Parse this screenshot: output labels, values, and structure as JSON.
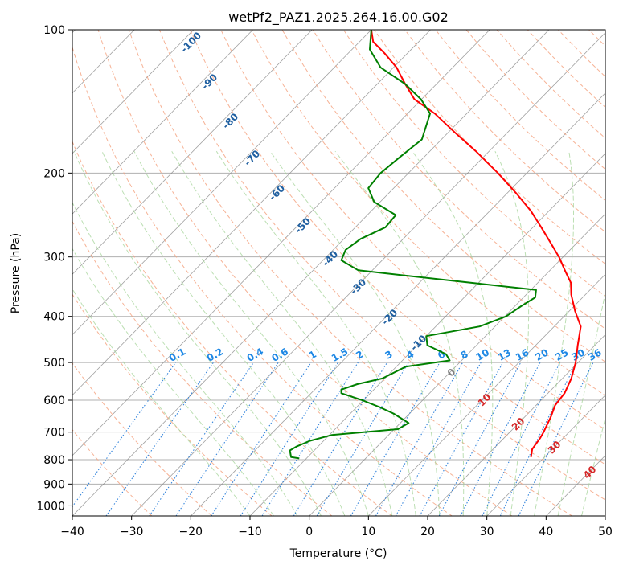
{
  "chart_data": {
    "type": "line",
    "title": "wetPf2_PAZ1.2025.264.16.00.G02",
    "xlabel": "Temperature (°C)",
    "ylabel": "Pressure (hPa)",
    "xlim": [
      -40,
      50
    ],
    "ylim": [
      1050,
      100
    ],
    "y_scale": "log",
    "x_ticks": [
      -40,
      -30,
      -20,
      -10,
      0,
      10,
      20,
      30,
      40,
      50
    ],
    "x_tick_labels": [
      "−40",
      "−30",
      "−20",
      "−10",
      "0",
      "10",
      "20",
      "30",
      "40",
      "50"
    ],
    "y_ticks": [
      1000,
      900,
      800,
      700,
      600,
      500,
      400,
      300,
      200,
      100
    ],
    "y_tick_labels": [
      "1000",
      "900",
      "800",
      "700",
      "600",
      "500",
      "400",
      "300",
      "200",
      "100"
    ],
    "grid": true,
    "series": [
      {
        "color": "#ff0000",
        "values": [
          [
            790,
            27.7
          ],
          [
            760,
            26.6
          ],
          [
            720,
            26.1
          ],
          [
            700,
            25.7
          ],
          [
            650,
            24.4
          ],
          [
            615,
            23.2
          ],
          [
            580,
            22.8
          ],
          [
            540,
            21.5
          ],
          [
            500,
            19.6
          ],
          [
            460,
            17.1
          ],
          [
            420,
            14.5
          ],
          [
            390,
            11.0
          ],
          [
            360,
            7.6
          ],
          [
            340,
            5.6
          ],
          [
            320,
            2.5
          ],
          [
            300,
            -0.7
          ],
          [
            280,
            -4.5
          ],
          [
            260,
            -8.6
          ],
          [
            240,
            -13.1
          ],
          [
            220,
            -18.6
          ],
          [
            200,
            -24.9
          ],
          [
            180,
            -32.2
          ],
          [
            165,
            -38.6
          ],
          [
            150,
            -45.4
          ],
          [
            140,
            -51.2
          ],
          [
            130,
            -55.3
          ],
          [
            120,
            -59.5
          ],
          [
            112,
            -63.9
          ],
          [
            106,
            -67.7
          ],
          [
            100,
            -70.0
          ]
        ]
      },
      {
        "color": "#008000",
        "values": [
          [
            795,
            -11.2
          ],
          [
            790,
            -12.8
          ],
          [
            765,
            -14.1
          ],
          [
            750,
            -13.6
          ],
          [
            730,
            -12.3
          ],
          [
            710,
            -9.6
          ],
          [
            690,
            0.6
          ],
          [
            670,
            1.4
          ],
          [
            640,
            -2.7
          ],
          [
            620,
            -6.2
          ],
          [
            600,
            -10.2
          ],
          [
            580,
            -14.9
          ],
          [
            570,
            -15.5
          ],
          [
            555,
            -13.7
          ],
          [
            540,
            -10.4
          ],
          [
            510,
            -8.4
          ],
          [
            495,
            -2.0
          ],
          [
            480,
            -3.7
          ],
          [
            460,
            -8.3
          ],
          [
            440,
            -10.0
          ],
          [
            420,
            -2.6
          ],
          [
            400,
            0.2
          ],
          [
            380,
            1.1
          ],
          [
            365,
            2.0
          ],
          [
            352,
            0.9
          ],
          [
            340,
            -11.2
          ],
          [
            320,
            -32.4
          ],
          [
            305,
            -36.9
          ],
          [
            290,
            -37.9
          ],
          [
            275,
            -37.2
          ],
          [
            260,
            -34.9
          ],
          [
            245,
            -35.2
          ],
          [
            230,
            -41.0
          ],
          [
            215,
            -44.3
          ],
          [
            200,
            -44.7
          ],
          [
            185,
            -44.1
          ],
          [
            170,
            -43.3
          ],
          [
            150,
            -46.2
          ],
          [
            140,
            -50.1
          ],
          [
            130,
            -55.3
          ],
          [
            120,
            -62.2
          ],
          [
            110,
            -67.0
          ],
          [
            100,
            -70.0
          ]
        ]
      }
    ],
    "dry_adiabat_labels": [
      "-100",
      "-90",
      "-80",
      "-70",
      "-60",
      "-50",
      "-40",
      "-30",
      "-20",
      "-10",
      "0",
      "10",
      "20",
      "30",
      "40"
    ],
    "mixing_ratio_labels": [
      "0.1",
      "0.2",
      "0.4",
      "0.6",
      "1",
      "1.5",
      "2",
      "3",
      "4",
      "6",
      "8",
      "10",
      "13",
      "16",
      "20",
      "25",
      "30",
      "36"
    ],
    "colors": {
      "temperature": "#ff0000",
      "dewpoint": "#008000",
      "dry_adiabat": "#f4a582",
      "moist_adiabat": "#a6d49a",
      "mixing_ratio": "#1f78d8",
      "isotherm": "#808080",
      "label_cold": "#1f5fa0",
      "label_mixing": "#1e88e5",
      "label_warm": "#d62728",
      "label_zero": "#808080"
    }
  }
}
